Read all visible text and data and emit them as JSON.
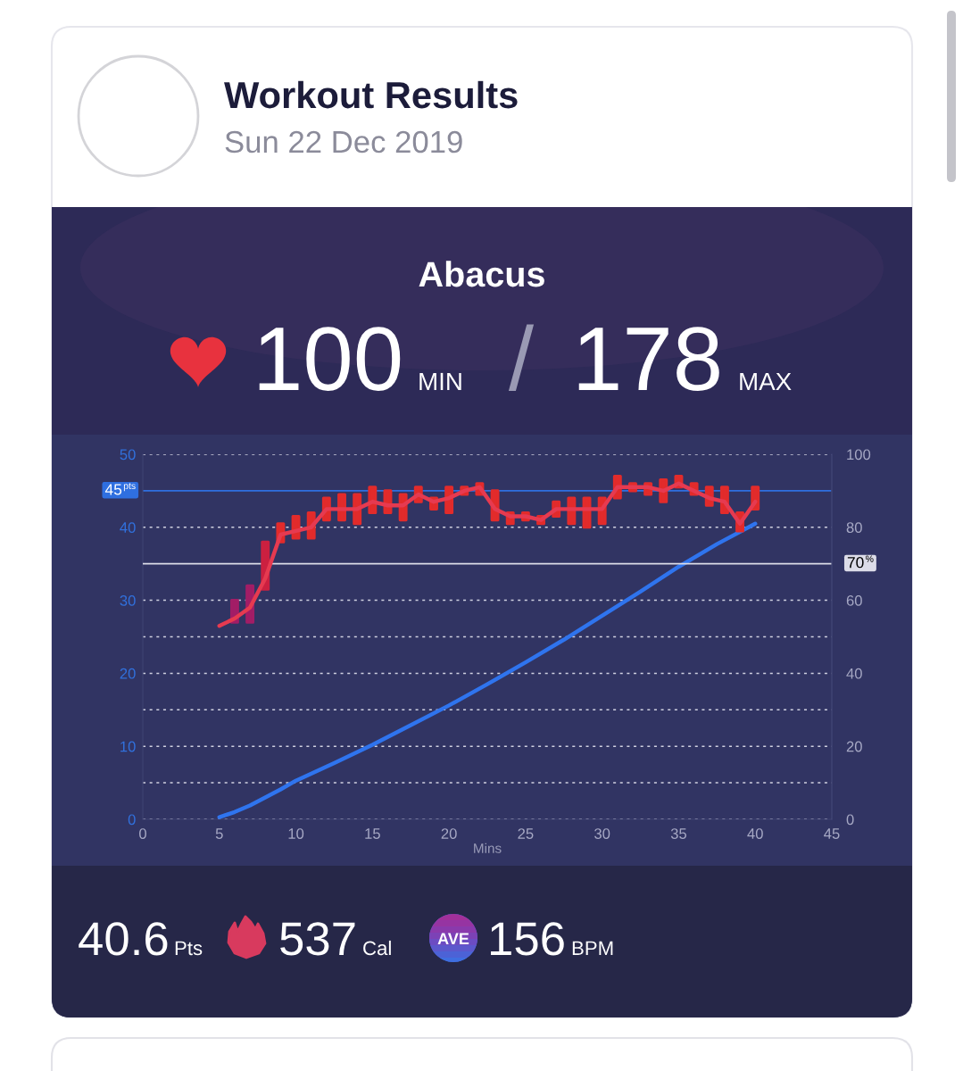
{
  "chart_data": [
    {
      "type": "other",
      "title": "Workout Results",
      "subtitle": "Sun 22 Dec 2019"
    },
    {
      "type": "bar",
      "title": "Abacus",
      "annotations": [
        "100",
        "MIN",
        "/",
        "178",
        "MAX"
      ],
      "xlabel": "Mins",
      "xlim": [
        0,
        45
      ],
      "xticks": [
        0,
        5,
        10,
        15,
        20,
        25,
        30,
        35,
        40,
        45
      ],
      "ylim": [
        0,
        50
      ],
      "yticks": [
        0,
        {
          "value": 5,
          "label": null
        },
        10,
        {
          "value": 15,
          "label": null
        },
        20,
        {
          "value": 25,
          "label": null
        },
        30,
        40,
        50
      ],
      "y2lim": [
        0,
        100
      ],
      "y2ticks": [
        0,
        20,
        40,
        60,
        80,
        100
      ],
      "grid": "y",
      "series": [
        {
          "type": "bar",
          "axis": "y2",
          "x": [
            6,
            7,
            8,
            9,
            10,
            11,
            12,
            13,
            14,
            15,
            16,
            17,
            18,
            19,
            20,
            21,
            22,
            23,
            24,
            25,
            26,
            27,
            28,
            29,
            30,
            31,
            32,
            33,
            34,
            35,
            36,
            37,
            38,
            39,
            40
          ],
          "base": [
            54,
            54,
            63,
            76,
            77,
            77,
            82,
            82,
            81,
            84,
            84,
            82,
            87,
            85,
            84,
            89,
            89,
            82,
            81,
            82,
            81,
            83,
            81,
            80,
            81,
            88,
            90,
            89,
            87,
            91,
            89,
            86,
            84,
            79,
            85
          ],
          "values": [
            6,
            10,
            13,
            5,
            6,
            7,
            6,
            7,
            8,
            7,
            6,
            7,
            4,
            3,
            7,
            2,
            3,
            8,
            3,
            2,
            2,
            4,
            7,
            8,
            7,
            6,
            2,
            3,
            6,
            3,
            3,
            5,
            7,
            5,
            6
          ],
          "colors": [
            "#a21d66",
            "#a21d66",
            "#cc2040",
            "#e22b2b",
            "#e22b2b",
            "#e22b2b",
            "#e22b2b",
            "#e22b2b",
            "#e22b2b",
            "#e22b2b",
            "#e22b2b",
            "#e22b2b",
            "#e22b2b",
            "#e22b2b",
            "#e22b2b",
            "#e22b2b",
            "#e22b2b",
            "#e22b2b",
            "#e22b2b",
            "#e22b2b",
            "#e22b2b",
            "#e22b2b",
            "#e22b2b",
            "#e22b2b",
            "#e22b2b",
            "#e22b2b",
            "#e22b2b",
            "#e22b2b",
            "#e22b2b",
            "#e22b2b",
            "#e22b2b",
            "#e22b2b",
            "#e22b2b",
            "#e22b2b",
            "#e22b2b"
          ]
        },
        {
          "type": "line",
          "axis": "y2",
          "x": [
            5,
            6,
            7,
            8,
            9,
            10,
            11,
            12,
            13,
            14,
            15,
            16,
            17,
            18,
            19,
            20,
            21,
            22,
            23,
            24,
            25,
            26,
            27,
            28,
            29,
            30,
            31,
            32,
            33,
            34,
            35,
            36,
            37,
            38,
            39,
            40
          ],
          "values": [
            53,
            55,
            58,
            66,
            78,
            79,
            80,
            85,
            85,
            85,
            87,
            86,
            86,
            89,
            87,
            88,
            90,
            91,
            85,
            83,
            83,
            82,
            85,
            85,
            85,
            85,
            91,
            91,
            91,
            90,
            92,
            90,
            88,
            87,
            81,
            87
          ],
          "color": "#e63a50"
        },
        {
          "type": "line",
          "x": [
            5,
            6,
            7,
            8,
            9,
            10,
            12.5,
            15,
            17.5,
            20,
            22.5,
            25,
            27.5,
            30,
            32.5,
            35,
            37.5,
            40
          ],
          "values": [
            0.3,
            1.0,
            1.9,
            3.0,
            4.1,
            5.3,
            7.7,
            10.2,
            12.9,
            15.6,
            18.5,
            21.5,
            24.6,
            27.9,
            31.2,
            34.6,
            37.7,
            40.5
          ],
          "color": "#2f74ee"
        }
      ],
      "ref_lines": [
        {
          "axis": "y",
          "value": 45,
          "label": "45$^{pts}$",
          "color": "#2f6fe0"
        },
        {
          "axis": "y2",
          "value": 70,
          "label": "70$^{%}$",
          "color": "#dcdce8"
        }
      ]
    },
    {
      "type": "other",
      "annotations": [
        "40.6",
        "Pts",
        "537",
        "Cal",
        "AVE",
        "156",
        "BPM"
      ]
    }
  ]
}
